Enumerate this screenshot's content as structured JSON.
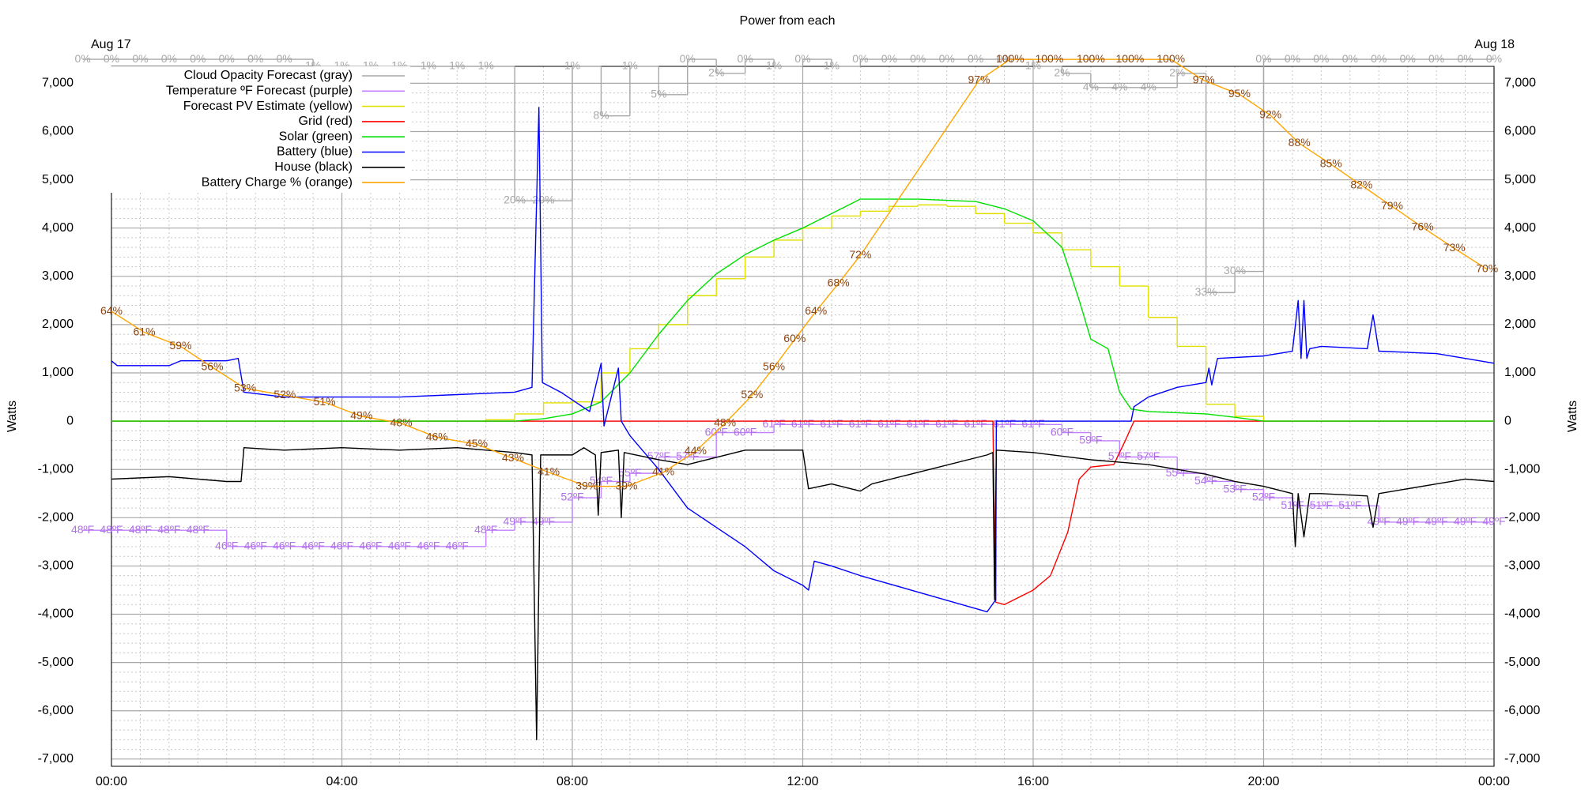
{
  "chart_data": {
    "type": "line",
    "title": "Power from each",
    "ylabel": "Watts",
    "y2label": "Watts",
    "annotations": [
      "Aug 17",
      "Aug 18"
    ],
    "xlim": [
      0,
      24
    ],
    "xticks": [
      {
        "value": 0,
        "label": "00:00"
      },
      {
        "value": 4,
        "label": "04:00"
      },
      {
        "value": 8,
        "label": "08:00"
      },
      {
        "value": 12,
        "label": "12:00"
      },
      {
        "value": 16,
        "label": "16:00"
      },
      {
        "value": 20,
        "label": "20:00"
      },
      {
        "value": 24,
        "label": "00:00"
      }
    ],
    "ylim": [
      -7150,
      7350
    ],
    "yticks": [
      {
        "value": 7000,
        "label": "7,000"
      },
      {
        "value": 6000,
        "label": "6,000"
      },
      {
        "value": 5000,
        "label": "5,000"
      },
      {
        "value": 4000,
        "label": "4,000"
      },
      {
        "value": 3000,
        "label": "3,000"
      },
      {
        "value": 2000,
        "label": "2,000"
      },
      {
        "value": 1000,
        "label": "1,000"
      },
      0,
      {
        "value": -1000,
        "label": "-1,000"
      },
      {
        "value": -2000,
        "label": "-2,000"
      },
      {
        "value": -3000,
        "label": "-3,000"
      },
      {
        "value": -4000,
        "label": "-4,000"
      },
      {
        "value": -5000,
        "label": "-5,000"
      },
      {
        "value": -6000,
        "label": "-6,000"
      },
      {
        "value": -7000,
        "label": "-7,000"
      }
    ],
    "grid": true,
    "minor_grid": {
      "x": 8,
      "y": 5
    },
    "legend": "upper left",
    "series": [
      {
        "name": "Cloud Opacity Forecast (gray)",
        "color": "#a8a8a8",
        "label_color": "#a8a8a8",
        "steps": true,
        "ylim": [
          100,
          1
        ],
        "x": [
          -0.5,
          0,
          0.5,
          1,
          1.5,
          2,
          2.5,
          3,
          3.5,
          4,
          4.5,
          5,
          5.5,
          6,
          6.5,
          7,
          7.5,
          8,
          8.5,
          9,
          9.5,
          10,
          10.5,
          11,
          11.5,
          12,
          12.5,
          13,
          13.5,
          14,
          14.5,
          15,
          15.5,
          16,
          16.5,
          17,
          17.5,
          18,
          18.5,
          19,
          19.5,
          20,
          20.5,
          21,
          21.5,
          22,
          22.5,
          23,
          23.5,
          24
        ],
        "values": [
          0,
          0,
          0,
          0,
          0,
          0,
          0,
          0,
          1,
          1,
          1,
          1,
          1,
          1,
          1,
          20,
          20,
          1,
          8,
          1,
          5,
          0,
          2,
          0,
          1,
          0,
          1,
          0,
          0,
          0,
          0,
          0,
          0,
          1,
          2,
          4,
          4,
          4,
          2,
          33,
          30,
          0,
          0,
          0,
          0,
          0,
          0,
          0,
          0,
          0
        ],
        "value_labels": [
          "0%",
          "0%",
          "0%",
          "0%",
          "0%",
          "0%",
          "0%",
          "0%",
          "1%",
          "1%",
          "1%",
          "1%",
          "1%",
          "1%",
          "1%",
          "20%",
          "20%",
          "1%",
          "8%",
          "1%",
          "5%",
          "0%",
          "2%",
          "0%",
          "1%",
          "0%",
          "1%",
          "0%",
          "0%",
          "0%",
          "0%",
          "0%",
          "0%",
          "1%",
          "2%",
          "4%",
          "4%",
          "4%",
          "2%",
          "33%",
          "30%",
          "0%",
          "0%",
          "0%",
          "0%",
          "0%",
          "0%",
          "0%",
          "0%",
          "0%"
        ]
      },
      {
        "name": "Temperature ºF Forecast (purple)",
        "color": "#c080ff",
        "label_color": "#b070e8",
        "steps": true,
        "ylim": [
          19,
          105
        ],
        "x": [
          -0.5,
          0,
          0.5,
          1,
          1.5,
          2,
          2.5,
          3,
          3.5,
          4,
          4.5,
          5,
          5.5,
          6,
          6.5,
          7,
          7.5,
          8,
          8.5,
          9,
          9.5,
          10,
          10.5,
          11,
          11.5,
          12,
          12.5,
          13,
          13.5,
          14,
          14.5,
          15,
          15.5,
          16,
          16.5,
          17,
          17.5,
          18,
          18.5,
          19,
          19.5,
          20,
          20.5,
          21,
          21.5,
          22,
          22.5,
          23,
          23.5,
          24
        ],
        "values": [
          48,
          48,
          48,
          48,
          48,
          46,
          46,
          46,
          46,
          46,
          46,
          46,
          46,
          46,
          48,
          49,
          49,
          52,
          54,
          55,
          57,
          57,
          60,
          60,
          61,
          61,
          61,
          61,
          61,
          61,
          61,
          61,
          61,
          61,
          60,
          59,
          57,
          57,
          55,
          54,
          53,
          52,
          51,
          51,
          51,
          49,
          49,
          49,
          49,
          49
        ],
        "value_labels": [
          "48ºF",
          "48ºF",
          "48ºF",
          "48ºF",
          "48ºF",
          "46ºF",
          "46ºF",
          "46ºF",
          "46ºF",
          "46ºF",
          "46ºF",
          "46ºF",
          "46ºF",
          "46ºF",
          "48ºF",
          "49ºF",
          "49ºF",
          "52ºF",
          "54ºF",
          "55ºF",
          "57ºF",
          "57ºF",
          "60ºF",
          "60ºF",
          "61ºF",
          "61ºF",
          "61ºF",
          "61ºF",
          "61ºF",
          "61ºF",
          "61ºF",
          "61ºF",
          "61ºF",
          "61ºF",
          "60ºF",
          "59ºF",
          "57ºF",
          "57ºF",
          "55ºF",
          "54ºF",
          "53ºF",
          "52ºF",
          "51ºF",
          "51ºF",
          "51ºF",
          "49ºF",
          "49ºF",
          "49ºF",
          "49ºF",
          "49ºF"
        ]
      },
      {
        "name": "Forecast PV Estimate (yellow)",
        "color": "#e0e000",
        "steps": true,
        "x": [
          0,
          6.5,
          7,
          7.5,
          8,
          8.5,
          9,
          9.5,
          10,
          10.5,
          11,
          11.5,
          12,
          12.5,
          13,
          13.5,
          14,
          14.5,
          15,
          15.5,
          16,
          16.5,
          17,
          17.5,
          18,
          18.5,
          19,
          19.5,
          20,
          24
        ],
        "values": [
          0,
          30,
          150,
          380,
          400,
          1000,
          1500,
          2000,
          2600,
          2950,
          3400,
          3750,
          4000,
          4250,
          4350,
          4450,
          4480,
          4450,
          4300,
          4100,
          3900,
          3550,
          3200,
          2800,
          2150,
          1550,
          350,
          100,
          0,
          0
        ]
      },
      {
        "name": "Grid (red)",
        "color": "#ff0000",
        "x": [
          0,
          15.3,
          15.35,
          15.5,
          16,
          16.3,
          16.6,
          16.8,
          17,
          17.4,
          17.6,
          17.75,
          24
        ],
        "values": [
          0,
          0,
          -3750,
          -3800,
          -3500,
          -3200,
          -2300,
          -1200,
          -950,
          -900,
          -400,
          0,
          0
        ]
      },
      {
        "name": "Solar (green)",
        "color": "#00e000",
        "x": [
          0,
          7,
          7.5,
          8,
          8.5,
          9,
          9.5,
          10,
          10.5,
          11,
          11.5,
          12,
          12.5,
          13,
          14,
          15,
          15.5,
          16,
          16.5,
          16.8,
          17,
          17.3,
          17.5,
          17.7,
          18,
          19,
          19.5,
          20,
          24
        ],
        "values": [
          0,
          0,
          50,
          150,
          400,
          1000,
          1800,
          2500,
          3050,
          3450,
          3750,
          4000,
          4300,
          4600,
          4600,
          4550,
          4400,
          4150,
          3600,
          2500,
          1700,
          1500,
          600,
          250,
          200,
          150,
          80,
          0,
          0
        ]
      },
      {
        "name": "Battery (blue)",
        "color": "#0000ff",
        "x": [
          0,
          0.1,
          1,
          1.2,
          2,
          2.2,
          2.3,
          3,
          4,
          5,
          6,
          7,
          7.3,
          7.42,
          7.48,
          7.8,
          8.3,
          8.5,
          8.55,
          8.8,
          8.85,
          9,
          9.5,
          10,
          10.5,
          11,
          11.5,
          12,
          12.1,
          12.2,
          12.5,
          13,
          15.2,
          15.35,
          15.36,
          17.7,
          17.75,
          18,
          18.5,
          19,
          19.05,
          19.1,
          19.2,
          20,
          20.5,
          20.6,
          20.65,
          20.7,
          20.75,
          20.8,
          21,
          21.8,
          21.9,
          22,
          23,
          24
        ],
        "values": [
          1250,
          1150,
          1150,
          1250,
          1250,
          1300,
          600,
          500,
          500,
          500,
          550,
          600,
          700,
          6500,
          800,
          600,
          200,
          1200,
          -100,
          1100,
          0,
          -300,
          -1000,
          -1800,
          -2200,
          -2600,
          -3100,
          -3400,
          -3500,
          -2900,
          -3000,
          -3200,
          -3950,
          -3700,
          0,
          0,
          300,
          500,
          700,
          800,
          1100,
          750,
          1300,
          1350,
          1450,
          2500,
          1300,
          2500,
          1300,
          1500,
          1550,
          1500,
          2200,
          1450,
          1400,
          1200
        ]
      },
      {
        "name": "House (black)",
        "color": "#000000",
        "x": [
          0,
          1,
          1.5,
          2,
          2.25,
          2.3,
          3,
          4,
          5,
          6,
          7,
          7.3,
          7.38,
          7.45,
          8,
          8.2,
          8.4,
          8.45,
          8.5,
          8.8,
          8.85,
          8.9,
          9.5,
          10,
          11,
          12,
          12.1,
          12.5,
          13,
          13.2,
          15.2,
          15.3,
          15.33,
          15.36,
          16,
          17,
          18,
          19,
          19.5,
          20,
          20.5,
          20.55,
          20.6,
          20.7,
          20.8,
          21,
          21.8,
          21.9,
          22,
          23,
          23.5,
          24
        ],
        "values": [
          -1200,
          -1150,
          -1200,
          -1250,
          -1250,
          -550,
          -600,
          -550,
          -600,
          -550,
          -650,
          -700,
          -6600,
          -700,
          -700,
          -550,
          -700,
          -1950,
          -650,
          -600,
          -2000,
          -650,
          -800,
          -900,
          -600,
          -600,
          -1400,
          -1300,
          -1450,
          -1300,
          -700,
          -650,
          -3700,
          -600,
          -650,
          -800,
          -900,
          -1100,
          -1250,
          -1350,
          -1500,
          -2600,
          -1500,
          -2400,
          -1500,
          -1500,
          -1550,
          -2200,
          -1500,
          -1300,
          -1200,
          -1250
        ]
      },
      {
        "name": "Battery Charge % (orange)",
        "color": "#ffa500",
        "label_color": "#8b4513",
        "ylim": [
          -1,
          99
        ],
        "x": [
          0,
          0.57,
          1.2,
          1.75,
          2.32,
          3.01,
          3.7,
          4.34,
          5.03,
          5.65,
          6.34,
          6.97,
          7.59,
          8.25,
          8.94,
          9.58,
          10.14,
          10.65,
          11.12,
          11.5,
          11.86,
          12.23,
          12.62,
          13.0,
          15.06,
          15.6,
          16.28,
          17.0,
          17.68,
          18.39,
          18.96,
          19.58,
          20.12,
          20.62,
          21.17,
          21.7,
          22.23,
          22.76,
          23.31,
          23.88
        ],
        "values": [
          64,
          61,
          59,
          56,
          53,
          52,
          51,
          49,
          48,
          46,
          45,
          43,
          41,
          39,
          39,
          41,
          44,
          48,
          52,
          56,
          60,
          64,
          68,
          72,
          97,
          100,
          100,
          100,
          100,
          100,
          97,
          95,
          92,
          88,
          85,
          82,
          79,
          76,
          73,
          70
        ],
        "value_labels": [
          "64%",
          "61%",
          "59%",
          "56%",
          "53%",
          "52%",
          "51%",
          "49%",
          "48%",
          "46%",
          "45%",
          "43%",
          "41%",
          "39%",
          "39%",
          "41%",
          "44%",
          "48%",
          "52%",
          "56%",
          "60%",
          "64%",
          "68%",
          "72%",
          "97%",
          "100%",
          "100%",
          "100%",
          "100%",
          "100%",
          "97%",
          "95%",
          "92%",
          "88%",
          "85%",
          "82%",
          "79%",
          "76%",
          "73%",
          "70%"
        ]
      }
    ]
  }
}
